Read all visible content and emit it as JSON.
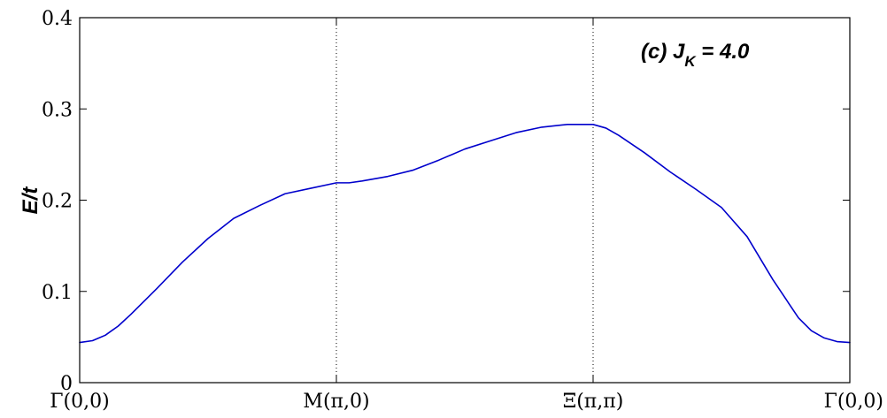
{
  "chart_data": {
    "type": "line",
    "title": "",
    "xlabel": "",
    "ylabel": "E/t",
    "ylim": [
      0,
      0.4
    ],
    "yticks": [
      0,
      0.1,
      0.2,
      0.3,
      0.4
    ],
    "ytick_labels": [
      "0",
      "0.1",
      "0.2",
      "0.3",
      "0.4"
    ],
    "xlim": [
      0,
      3
    ],
    "xticks": [
      0,
      1,
      2,
      3
    ],
    "xtick_labels": [
      "Γ(0,0)",
      "M(π,0)",
      "Ξ(π,π)",
      "Γ(0,0)"
    ],
    "grid": false,
    "vertical_dotted_lines_at": [
      1,
      2
    ],
    "annotation": {
      "prefix": "(c) J",
      "subscript": "K",
      "suffix": " = 4.0"
    },
    "series": [
      {
        "color": "#0000cc",
        "x": [
          0,
          0.05,
          0.1,
          0.15,
          0.2,
          0.3,
          0.4,
          0.5,
          0.6,
          0.7,
          0.8,
          0.9,
          1.0,
          1.05,
          1.1,
          1.2,
          1.3,
          1.4,
          1.5,
          1.6,
          1.7,
          1.8,
          1.9,
          1.95,
          2.0,
          2.05,
          2.1,
          2.2,
          2.3,
          2.4,
          2.5,
          2.6,
          2.7,
          2.8,
          2.85,
          2.9,
          2.95,
          3.0
        ],
        "y": [
          0.044,
          0.046,
          0.052,
          0.062,
          0.075,
          0.103,
          0.132,
          0.158,
          0.18,
          0.194,
          0.207,
          0.213,
          0.219,
          0.219,
          0.221,
          0.226,
          0.233,
          0.244,
          0.256,
          0.265,
          0.274,
          0.28,
          0.283,
          0.283,
          0.283,
          0.279,
          0.271,
          0.252,
          0.231,
          0.212,
          0.192,
          0.16,
          0.113,
          0.071,
          0.057,
          0.049,
          0.045,
          0.044
        ]
      }
    ]
  }
}
